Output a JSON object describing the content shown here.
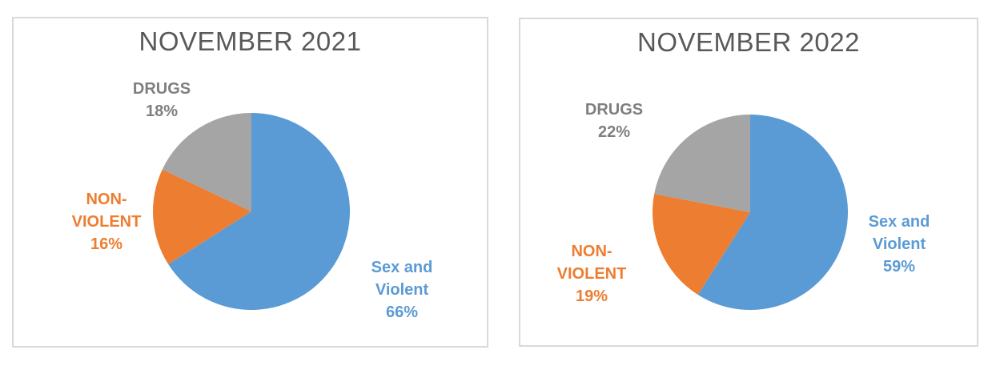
{
  "page": {
    "background": "#ffffff",
    "panel_border_color": "#d9d9d9",
    "title_color": "#595959"
  },
  "palette": {
    "blue": "#5B9BD5",
    "orange": "#ED7D31",
    "gray_slice": "#A5A5A5",
    "gray_label": "#7F7F7F"
  },
  "chart_data": [
    {
      "type": "pie",
      "title": "NOVEMBER 2021",
      "start_angle_deg": 0,
      "direction": "clockwise",
      "radius_px": 123,
      "slices": [
        {
          "label": "Sex and Violent",
          "value": 66,
          "color": "#5B9BD5"
        },
        {
          "label": "NON-VIOLENT",
          "value": 16,
          "color": "#ED7D31"
        },
        {
          "label": "DRUGS",
          "value": 18,
          "color": "#A5A5A5"
        }
      ],
      "labels": {
        "drugs": {
          "lines": [
            "DRUGS",
            "18%"
          ],
          "color": "#7F7F7F"
        },
        "nonviolent": {
          "lines": [
            "NON-",
            "VIOLENT",
            "16%"
          ],
          "color": "#ED7D31"
        },
        "sexviolent": {
          "lines": [
            "Sex and",
            "Violent",
            "66%"
          ],
          "color": "#5B9BD5"
        }
      }
    },
    {
      "type": "pie",
      "title": "NOVEMBER 2022",
      "start_angle_deg": 0,
      "direction": "clockwise",
      "radius_px": 122,
      "slices": [
        {
          "label": "Sex and Violent",
          "value": 59,
          "color": "#5B9BD5"
        },
        {
          "label": "NON-VIOLENT",
          "value": 19,
          "color": "#ED7D31"
        },
        {
          "label": "DRUGS",
          "value": 22,
          "color": "#A5A5A5"
        }
      ],
      "labels": {
        "drugs": {
          "lines": [
            "DRUGS",
            "22%"
          ],
          "color": "#7F7F7F"
        },
        "nonviolent": {
          "lines": [
            "NON-",
            "VIOLENT",
            "19%"
          ],
          "color": "#ED7D31"
        },
        "sexviolent": {
          "lines": [
            "Sex and",
            "Violent",
            "59%"
          ],
          "color": "#5B9BD5"
        }
      }
    }
  ]
}
